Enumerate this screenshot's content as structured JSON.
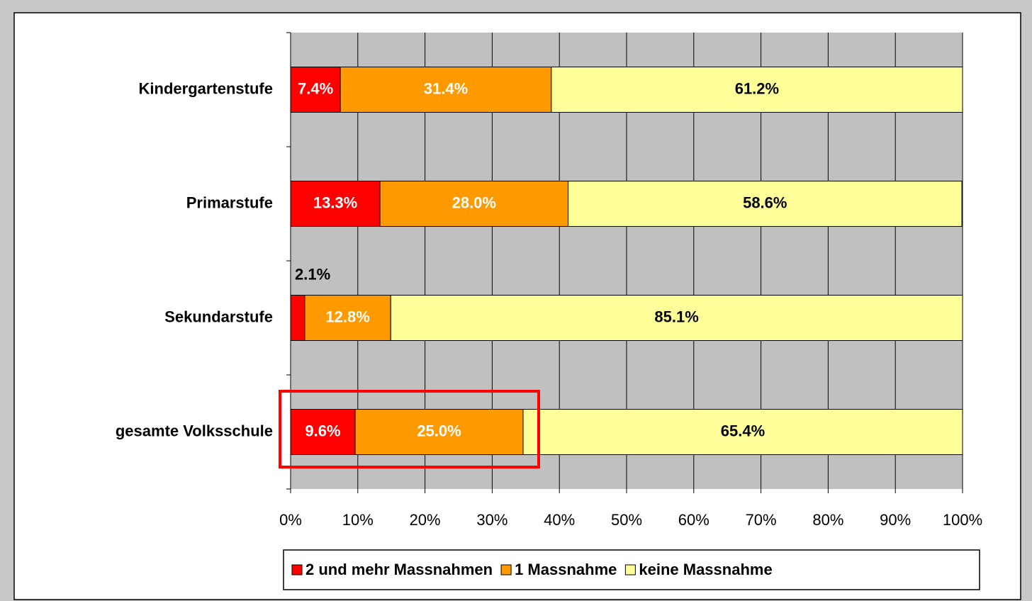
{
  "chart_data": {
    "type": "stacked_barh",
    "categories": [
      "Kindergartenstufe",
      "Primarstufe",
      "Sekundarstufe",
      "gesamte Volksschule"
    ],
    "series": [
      {
        "name": "2 und mehr Massnahmen",
        "color": "#ff0000",
        "label_color": "#ffffff",
        "values": [
          7.4,
          13.3,
          2.1,
          9.6
        ],
        "value_labels": [
          "7.4%",
          "13.3%",
          "2.1%",
          "9.6%"
        ]
      },
      {
        "name": "1 Massnahme",
        "color": "#ff9900",
        "label_color": "#ffffff",
        "values": [
          31.4,
          28.0,
          12.8,
          25.0
        ],
        "value_labels": [
          "31.4%",
          "28.0%",
          "12.8%",
          "25.0%"
        ]
      },
      {
        "name": "keine Massnahme",
        "color": "#ffff99",
        "label_color": "#000000",
        "values": [
          61.2,
          58.6,
          85.1,
          65.4
        ],
        "value_labels": [
          "61.2%",
          "58.6%",
          "85.1%",
          "65.4%"
        ]
      }
    ],
    "xlim": [
      0,
      100
    ],
    "xticks": [
      {
        "value": 0,
        "label": "0%"
      },
      {
        "value": 10,
        "label": "10%"
      },
      {
        "value": 20,
        "label": "20%"
      },
      {
        "value": 30,
        "label": "30%"
      },
      {
        "value": 40,
        "label": "40%"
      },
      {
        "value": 50,
        "label": "50%"
      },
      {
        "value": 60,
        "label": "60%"
      },
      {
        "value": 70,
        "label": "70%"
      },
      {
        "value": 80,
        "label": "80%"
      },
      {
        "value": 90,
        "label": "90%"
      },
      {
        "value": 100,
        "label": "100%"
      }
    ],
    "grid": true,
    "legend": "bottom"
  }
}
